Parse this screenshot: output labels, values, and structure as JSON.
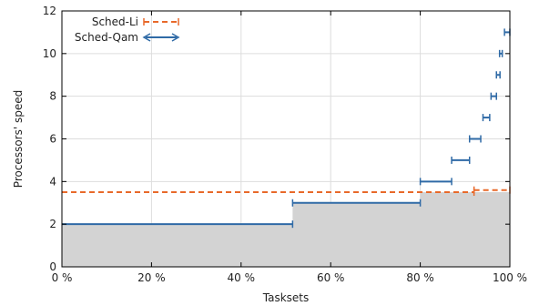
{
  "chart_data": {
    "type": "line",
    "xlabel": "Tasksets",
    "ylabel": "Processors' speed",
    "xlim": [
      0,
      100
    ],
    "ylim": [
      0,
      12
    ],
    "x_ticks": [
      0,
      20,
      40,
      60,
      80,
      100
    ],
    "x_tick_labels": [
      "0 %",
      "20 %",
      "40 %",
      "60 %",
      "80 %",
      "100 %"
    ],
    "y_ticks": [
      0,
      2,
      4,
      6,
      8,
      10,
      12
    ],
    "y_tick_labels": [
      "0",
      "2",
      "4",
      "6",
      "8",
      "10",
      "12"
    ],
    "grid": true,
    "legend_position": "top-left",
    "series": [
      {
        "name": "Sched-Li",
        "style": "dashed-with-interval",
        "color": "#e8692a",
        "segments": [
          {
            "x_start": 0,
            "x_end": 92,
            "y": 3.5
          },
          {
            "x_start": 92,
            "x_end": 100,
            "y": 3.6
          }
        ]
      },
      {
        "name": "Sched-Qam",
        "style": "interval-bars",
        "color": "#2f6aa6",
        "intervals": [
          {
            "x_start": 0,
            "x_end": 51.5,
            "y": 2
          },
          {
            "x_start": 51.5,
            "x_end": 80,
            "y": 3
          },
          {
            "x_start": 80,
            "x_end": 87,
            "y": 4
          },
          {
            "x_start": 87,
            "x_end": 91,
            "y": 5
          },
          {
            "x_start": 91,
            "x_end": 93.5,
            "y": 6
          },
          {
            "x_start": 94,
            "x_end": 95.5,
            "y": 7
          },
          {
            "x_start": 95.8,
            "x_end": 97,
            "y": 8
          },
          {
            "x_start": 97,
            "x_end": 97.8,
            "y": 9
          },
          {
            "x_start": 97.7,
            "x_end": 98.3,
            "y": 10
          },
          {
            "x_start": 98.8,
            "x_end": 100,
            "y": 11
          }
        ]
      }
    ],
    "shaded_area": {
      "color": "#d3d3d3",
      "steps": [
        {
          "x_start": 0,
          "x_end": 51.5,
          "y": 2
        },
        {
          "x_start": 51.5,
          "x_end": 80,
          "y": 3
        },
        {
          "x_start": 80,
          "x_end": 100,
          "y": 3.5
        }
      ]
    }
  }
}
